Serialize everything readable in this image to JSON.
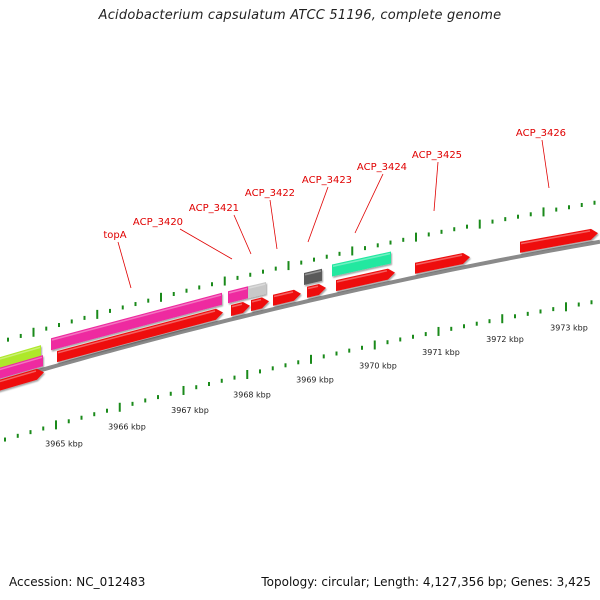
{
  "title": "Acidobacterium capsulatum ATCC 51196, complete genome",
  "footer": {
    "accession": "Accession: NC_012483",
    "summary": "Topology: circular; Length: 4,127,356 bp; Genes: 3,425"
  },
  "scale": {
    "unit": "kbp",
    "tick_labels": [
      "3965 kbp",
      "3966 kbp",
      "3967 kbp",
      "3968 kbp",
      "3969 kbp",
      "3970 kbp",
      "3971 kbp",
      "3972 kbp",
      "3973 kbp"
    ]
  },
  "gene_labels": [
    "topA",
    "ACP_3420",
    "ACP_3421",
    "ACP_3422",
    "ACP_3423",
    "ACP_3424",
    "ACP_3425",
    "ACP_3426"
  ],
  "colors": {
    "cds": "#ee1111",
    "gene_pink": "#ee2aa0",
    "gene_lime": "#aee82a",
    "gene_gray": "#c8c8c8",
    "gene_dark": "#5a5a5a",
    "gene_teal": "#22e8a0",
    "backbone": "#8a8a8a",
    "tick": "#1a8a1a",
    "label": "#e00000"
  }
}
